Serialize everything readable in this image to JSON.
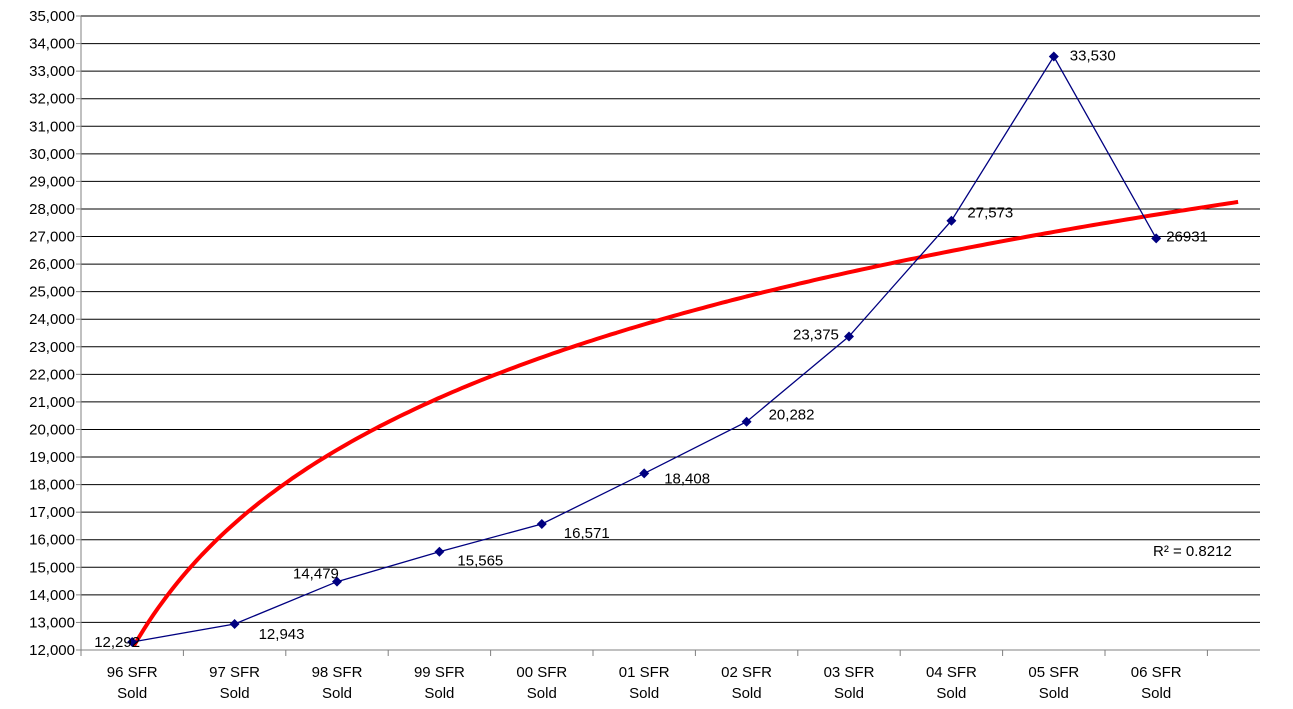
{
  "chart_data": {
    "type": "line",
    "title": "",
    "xlabel": "",
    "ylabel": "",
    "ylim": [
      12000,
      35000
    ],
    "y_tick_step": 1000,
    "y_ticks": [
      "12,000",
      "13,000",
      "14,000",
      "15,000",
      "16,000",
      "17,000",
      "18,000",
      "19,000",
      "20,000",
      "21,000",
      "22,000",
      "23,000",
      "24,000",
      "25,000",
      "26,000",
      "27,000",
      "28,000",
      "29,000",
      "30,000",
      "31,000",
      "32,000",
      "33,000",
      "34,000",
      "35,000"
    ],
    "categories": [
      [
        "96 SFR",
        "Sold"
      ],
      [
        "97 SFR",
        "Sold"
      ],
      [
        "98 SFR",
        "Sold"
      ],
      [
        "99 SFR",
        "Sold"
      ],
      [
        "00 SFR",
        "Sold"
      ],
      [
        "01 SFR",
        "Sold"
      ],
      [
        "02 SFR",
        "Sold"
      ],
      [
        "03 SFR",
        "Sold"
      ],
      [
        "04 SFR",
        "Sold"
      ],
      [
        "05 SFR",
        "Sold"
      ],
      [
        "06 SFR",
        "Sold"
      ]
    ],
    "series": [
      {
        "values": [
          12292,
          12943,
          14479,
          15565,
          16571,
          18408,
          20282,
          23375,
          27573,
          33530,
          26931
        ],
        "data_labels": [
          "12,292",
          "12,943",
          "14,479",
          "15,565",
          "16,571",
          "18,408",
          "20,282",
          "23,375",
          "27,573",
          "33,530",
          "26931"
        ],
        "color": "#000080",
        "marker": "diamond"
      }
    ],
    "trendline": {
      "type": "logarithmic",
      "color": "#ff0000",
      "equation_a": 6569,
      "equation_b": 12042,
      "r_squared_label": "R² = 0.8212"
    },
    "grid": "horizontal",
    "legend": "none",
    "colors": {
      "gridline": "#000000",
      "axis": "#808080",
      "series": "#000080",
      "trend": "#ff0000"
    }
  }
}
